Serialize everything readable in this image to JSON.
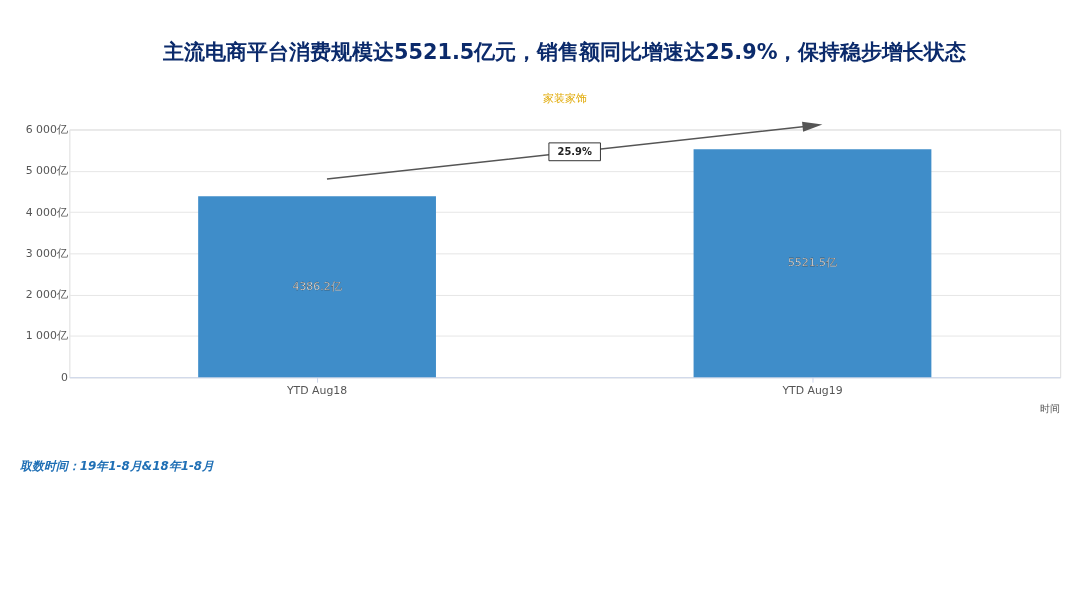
{
  "chart_data": {
    "type": "bar",
    "title": "主流电商平台消费规模达5521.5亿元，销售额同比增速达25.9%，保持稳步增长状态",
    "subtitle": "家装家饰",
    "xlabel": "时间",
    "categories": [
      "YTD Aug18",
      "YTD Aug19"
    ],
    "values": [
      4386.2,
      5521.5
    ],
    "value_labels": [
      "4386.2亿",
      "5521.5亿"
    ],
    "color": "#3f8dc9",
    "ylim": [
      0,
      6000
    ],
    "yticks": [
      0,
      {
        "value": 1000,
        "label": "1 000亿"
      },
      {
        "value": 2000,
        "label": "2 000亿"
      },
      {
        "value": 3000,
        "label": "3 000亿"
      },
      {
        "value": 4000,
        "label": "4 000亿"
      },
      {
        "value": 5000,
        "label": "5 000亿"
      },
      {
        "value": 6000,
        "label": "6 000亿"
      }
    ],
    "grid": "y",
    "annotations": [
      "25.9%",
      "取数时间：19年1-8月&18年1-8月"
    ]
  }
}
